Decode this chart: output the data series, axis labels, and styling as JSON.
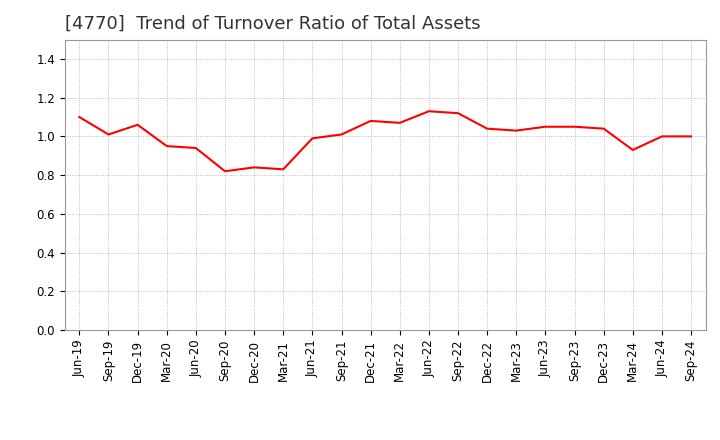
{
  "title": "[4770]  Trend of Turnover Ratio of Total Assets",
  "x_labels": [
    "Jun-19",
    "Sep-19",
    "Dec-19",
    "Mar-20",
    "Jun-20",
    "Sep-20",
    "Dec-20",
    "Mar-21",
    "Jun-21",
    "Sep-21",
    "Dec-21",
    "Mar-22",
    "Jun-22",
    "Sep-22",
    "Dec-22",
    "Mar-23",
    "Jun-23",
    "Sep-23",
    "Dec-23",
    "Mar-24",
    "Jun-24",
    "Sep-24"
  ],
  "y_values": [
    1.1,
    1.01,
    1.06,
    0.95,
    0.94,
    0.82,
    0.84,
    0.83,
    0.99,
    1.01,
    1.08,
    1.07,
    1.13,
    1.12,
    1.04,
    1.03,
    1.05,
    1.05,
    1.04,
    0.93,
    1.0,
    1.0
  ],
  "line_color": "#FF0000",
  "line_width": 1.5,
  "ylim": [
    0.0,
    1.5
  ],
  "yticks": [
    0.0,
    0.2,
    0.4,
    0.6,
    0.8,
    1.0,
    1.2,
    1.4
  ],
  "grid_color": "#aaaaaa",
  "grid_style": "dotted",
  "bg_color": "#ffffff",
  "title_fontsize": 13,
  "title_color": "#333333",
  "tick_fontsize": 8.5
}
